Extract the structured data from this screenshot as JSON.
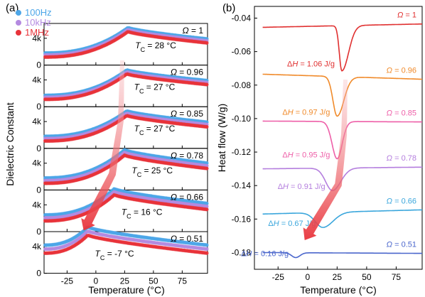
{
  "figure": {
    "panel_a_label": "(a)",
    "panel_b_label": "(b)"
  },
  "chart_data": [
    {
      "type": "scatter",
      "panel": "(a)",
      "xlabel": "Temperature (°C)",
      "ylabel": "Dielectric Constant",
      "xlim": [
        -45,
        97
      ],
      "ylim": [
        0,
        6000
      ],
      "xticks": [
        -25,
        0,
        25,
        50,
        75
      ],
      "yticks": [
        {
          "value": 0,
          "label": "0"
        },
        {
          "value": 4000,
          "label": "4k"
        }
      ],
      "legend": {
        "placement": "top-left",
        "entries": [
          {
            "label": "100Hz",
            "color": "#4da6e8"
          },
          {
            "label": "10kHz",
            "color": "#b48ae0"
          },
          {
            "label": "1MHz",
            "color": "#e8333a"
          }
        ]
      },
      "stacked_subplots": [
        {
          "omega": "Ω = 1",
          "tc": "T",
          "tc_sub": "C",
          "tc_value": " = 28 °C",
          "peak_x": 28,
          "peak_y": 5000,
          "base_left": 1200,
          "base_right": 3300,
          "disp": 300
        },
        {
          "omega": "Ω = 0.96",
          "tc": "T",
          "tc_sub": "C",
          "tc_value": " = 27 °C",
          "peak_x": 27,
          "peak_y": 4900,
          "base_left": 1100,
          "base_right": 3300,
          "disp": 300
        },
        {
          "omega": "Ω = 0.85",
          "tc": "T",
          "tc_sub": "C",
          "tc_value": " = 27 °C",
          "peak_x": 27,
          "peak_y": 4900,
          "base_left": 1100,
          "base_right": 3200,
          "disp": 350
        },
        {
          "omega": "Ω = 0.78",
          "tc": "T",
          "tc_sub": "C",
          "tc_value": " = 25 °C",
          "peak_x": 25,
          "peak_y": 5200,
          "base_left": 1000,
          "base_right": 3200,
          "disp": 400
        },
        {
          "omega": "Ω = 0.66",
          "tc": "T",
          "tc_sub": "C",
          "tc_value": " = 16 °C",
          "peak_x": 16,
          "peak_y": 5500,
          "base_left": 1600,
          "base_right": 3300,
          "disp": 450
        },
        {
          "omega": "Ω = 0.51",
          "tc": "T",
          "tc_sub": "C",
          "tc_value": " = -7 °C",
          "peak_x": -7,
          "peak_y": 5700,
          "base_left": 3000,
          "base_right": 3000,
          "disp": 600
        }
      ]
    },
    {
      "type": "line",
      "panel": "(b)",
      "xlabel": "Temperature (°C)",
      "ylabel": "Heat flow (W/g)",
      "xlim": [
        -45,
        97
      ],
      "ylim": [
        -0.19,
        -0.033
      ],
      "xticks": [
        -25,
        0,
        25,
        50,
        75
      ],
      "yticks": [
        -0.04,
        -0.06,
        -0.08,
        -0.1,
        -0.12,
        -0.14,
        -0.16,
        -0.18
      ],
      "series": [
        {
          "name": "Ω = 1",
          "color": "#e03030",
          "baseline_left": -0.0455,
          "baseline_right": -0.0435,
          "dip_x": 29,
          "dip_y": -0.0715,
          "dip_w": 3,
          "rec_w": 8,
          "dh_label": "ΔH",
          "dh_value": " = 1.06 J/g"
        },
        {
          "name": "Ω = 0.96",
          "color": "#f08a2a",
          "baseline_left": -0.0735,
          "baseline_right": -0.0765,
          "dip_x": 25,
          "dip_y": -0.0985,
          "dip_w": 5,
          "rec_w": 8,
          "dh_label": "ΔH",
          "dh_value": " = 0.97 J/g"
        },
        {
          "name": "Ω = 0.85",
          "color": "#ee5fa8",
          "baseline_left": -0.1015,
          "baseline_right": -0.102,
          "dip_x": 25,
          "dip_y": -0.124,
          "dip_w": 6,
          "rec_w": 6,
          "dh_label": "ΔH",
          "dh_value": " = 0.95 J/g"
        },
        {
          "name": "Ω = 0.78",
          "color": "#b47ede",
          "baseline_left": -0.13,
          "baseline_right": -0.129,
          "dip_x": 21,
          "dip_y": -0.143,
          "dip_w": 8,
          "rec_w": 10,
          "dh_label": "ΔH",
          "dh_value": " = 0.91 J/g"
        },
        {
          "name": "Ω = 0.66",
          "color": "#3aa6dc",
          "baseline_left": -0.157,
          "baseline_right": -0.1545,
          "dip_x": 13,
          "dip_y": -0.165,
          "dip_w": 9,
          "rec_w": 12,
          "dh_label": "ΔH",
          "dh_value": " = 0.67 J/g"
        },
        {
          "name": "Ω = 0.51",
          "color": "#4a66cc",
          "baseline_left": -0.18,
          "baseline_right": -0.1805,
          "dip_x": -10,
          "dip_y": -0.183,
          "dip_w": 5,
          "rec_w": 5,
          "dh_label": "ΔH",
          "dh_value": " = 0.16 J/g"
        }
      ]
    }
  ]
}
